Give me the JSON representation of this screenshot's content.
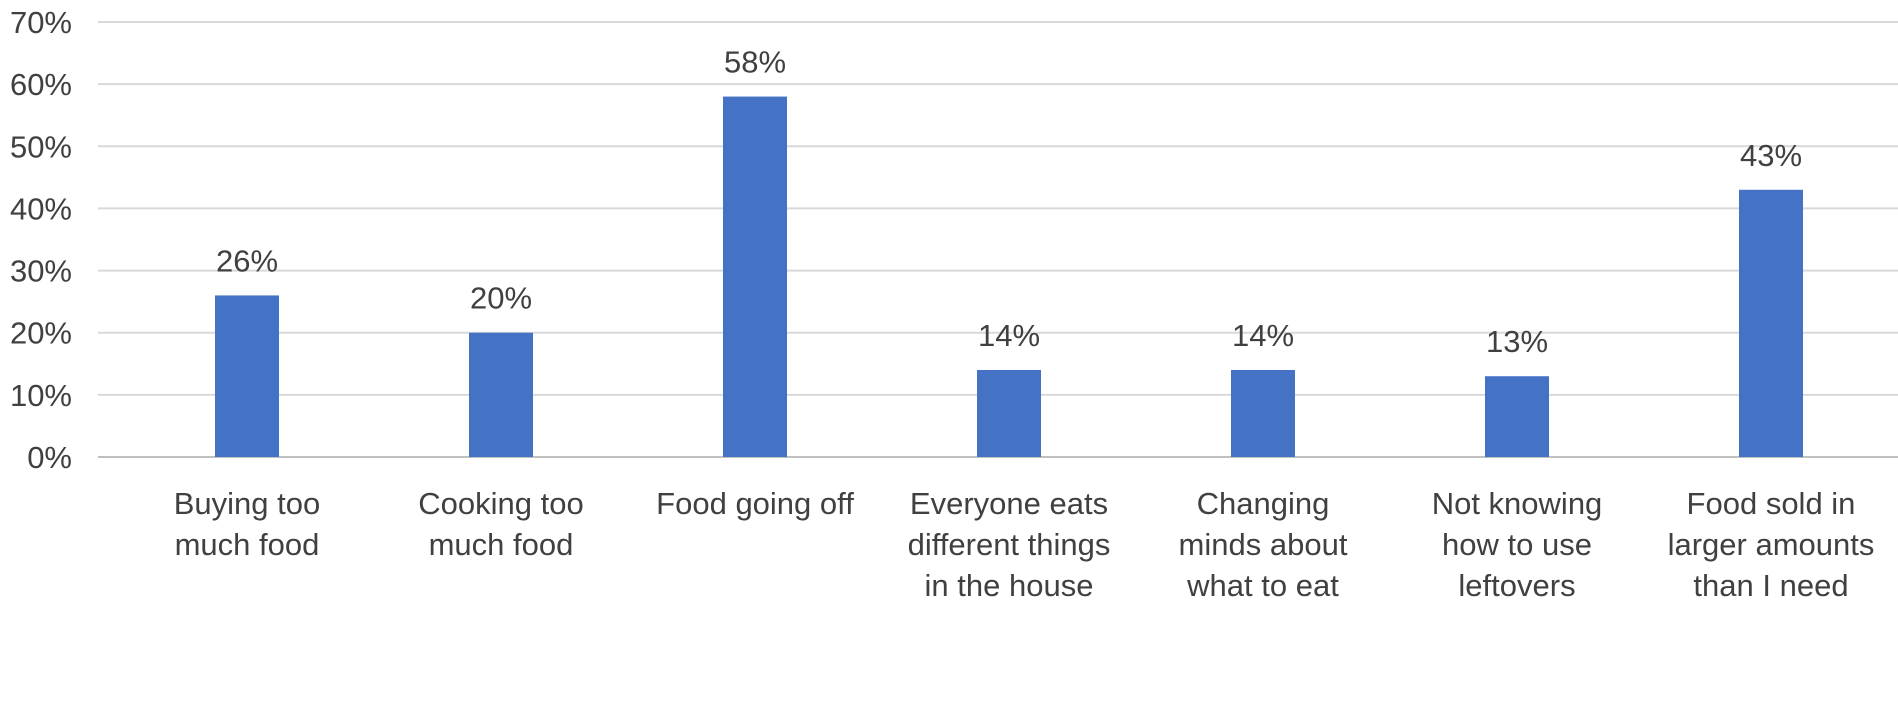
{
  "chart_data": {
    "type": "bar",
    "categories": [
      [
        "Buying too",
        "much food"
      ],
      [
        "Cooking too",
        "much food"
      ],
      [
        "Food going off"
      ],
      [
        "Everyone eats",
        "different things",
        "in the house"
      ],
      [
        "Changing",
        "minds about",
        "what to eat"
      ],
      [
        "Not knowing",
        "how to use",
        "leftovers"
      ],
      [
        "Food sold in",
        "larger amounts",
        "than I need"
      ]
    ],
    "values": [
      26,
      20,
      58,
      14,
      14,
      13,
      43
    ],
    "value_labels": [
      "26%",
      "20%",
      "58%",
      "14%",
      "14%",
      "13%",
      "43%"
    ],
    "ylim": [
      0,
      70
    ],
    "yticks": [
      0,
      10,
      20,
      30,
      40,
      50,
      60,
      70
    ],
    "ytick_labels": [
      "0%",
      "10%",
      "20%",
      "30%",
      "40%",
      "50%",
      "60%",
      "70%"
    ],
    "title": "",
    "xlabel": "",
    "ylabel": "",
    "grid": true,
    "legend": "none",
    "colors": {
      "bar": "#4472c4",
      "grid": "#d9d9d9",
      "text": "#404040"
    }
  }
}
